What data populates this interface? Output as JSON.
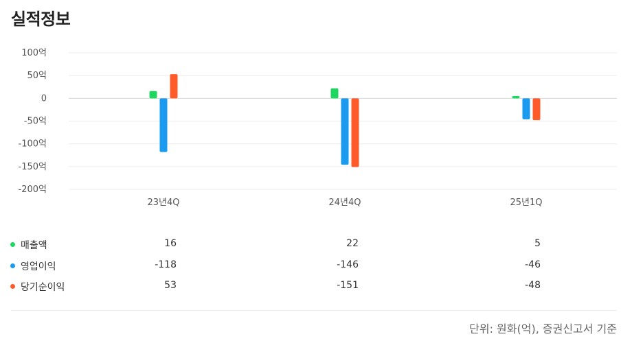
{
  "title": "실적정보",
  "chart_data": {
    "type": "bar",
    "categories": [
      "23년4Q",
      "24년4Q",
      "25년1Q"
    ],
    "yticks": [
      "100억",
      "50억",
      "0",
      "-50억",
      "-100억",
      "-150억",
      "-200억"
    ],
    "ylim": [
      -200,
      100
    ],
    "series": [
      {
        "name": "매출액",
        "color": "#1ed760",
        "values": [
          16,
          22,
          5
        ],
        "labels": [
          "16",
          "22",
          "5"
        ]
      },
      {
        "name": "영업이익",
        "color": "#1a9bf0",
        "values": [
          -118,
          -146,
          -46
        ],
        "labels": [
          "-118",
          "-146",
          "-46"
        ]
      },
      {
        "name": "당기순이익",
        "color": "#ff5a2a",
        "values": [
          53,
          -151,
          -48
        ],
        "labels": [
          "53",
          "-151",
          "-48"
        ]
      }
    ]
  },
  "footnote": "단위: 원화(억), 증권신고서 기준"
}
